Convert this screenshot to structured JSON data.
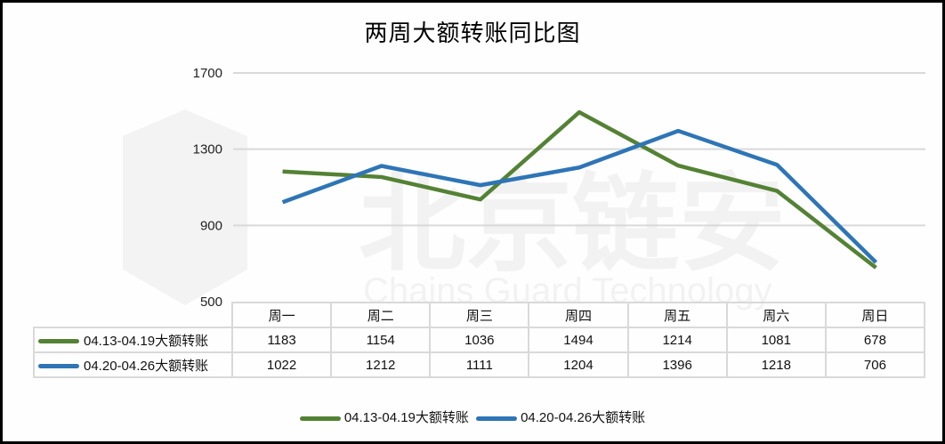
{
  "title": "两周大额转账同比图",
  "watermark": {
    "cn": "北京链安",
    "en": "Chains Guard Technology"
  },
  "colors": {
    "series1": "#548235",
    "series2": "#2e75b6",
    "grid": "#d9d9d9"
  },
  "chart_data": {
    "type": "line",
    "title": "两周大额转账同比图",
    "xlabel": "",
    "ylabel": "",
    "categories": [
      "周一",
      "周二",
      "周三",
      "周四",
      "周五",
      "周六",
      "周日"
    ],
    "series": [
      {
        "name": "04.13-04.19大额转账",
        "values": [
          1183,
          1154,
          1036,
          1494,
          1214,
          1081,
          678
        ]
      },
      {
        "name": "04.20-04.26大额转账",
        "values": [
          1022,
          1212,
          1111,
          1204,
          1396,
          1218,
          706
        ]
      }
    ],
    "ylim": [
      500,
      1700
    ],
    "yticks": [
      500,
      900,
      1300,
      1700
    ],
    "grid": true,
    "legend_position": "bottom",
    "data_table": true
  }
}
